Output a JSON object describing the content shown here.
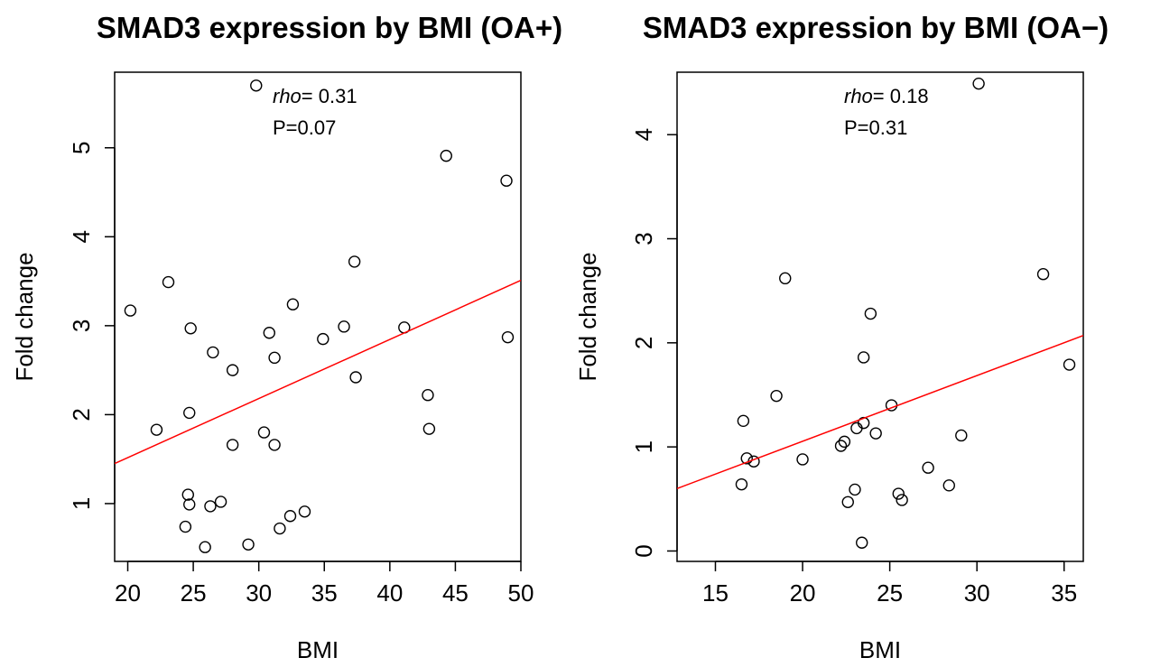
{
  "chart_data": [
    {
      "type": "scatter",
      "title": "SMAD3 expression by BMI (OA+)",
      "xlabel": "BMI",
      "ylabel": "Fold change",
      "xlim": [
        19,
        50
      ],
      "ylim": [
        0.35,
        5.85
      ],
      "xticks": [
        20,
        25,
        30,
        35,
        40,
        45,
        50
      ],
      "yticks": [
        1,
        2,
        3,
        4,
        5
      ],
      "annotation": {
        "rho_label": "rho",
        "rho_value": "= 0.31",
        "p_text": "P=0.07"
      },
      "regression_line": {
        "color": "#ff0000",
        "x": [
          19,
          50
        ],
        "y": [
          1.45,
          3.51
        ]
      },
      "points": [
        {
          "x": 20.2,
          "y": 3.17
        },
        {
          "x": 22.2,
          "y": 1.83
        },
        {
          "x": 23.1,
          "y": 3.49
        },
        {
          "x": 24.4,
          "y": 0.74
        },
        {
          "x": 24.6,
          "y": 1.1
        },
        {
          "x": 24.7,
          "y": 0.99
        },
        {
          "x": 24.7,
          "y": 2.02
        },
        {
          "x": 24.8,
          "y": 2.97
        },
        {
          "x": 25.9,
          "y": 0.51
        },
        {
          "x": 26.3,
          "y": 0.97
        },
        {
          "x": 26.5,
          "y": 2.7
        },
        {
          "x": 27.1,
          "y": 1.02
        },
        {
          "x": 28.0,
          "y": 2.5
        },
        {
          "x": 28.0,
          "y": 1.66
        },
        {
          "x": 29.2,
          "y": 0.54
        },
        {
          "x": 29.8,
          "y": 5.7
        },
        {
          "x": 30.4,
          "y": 1.8
        },
        {
          "x": 30.8,
          "y": 2.92
        },
        {
          "x": 31.2,
          "y": 2.64
        },
        {
          "x": 31.2,
          "y": 1.66
        },
        {
          "x": 31.6,
          "y": 0.72
        },
        {
          "x": 32.4,
          "y": 0.86
        },
        {
          "x": 32.6,
          "y": 3.24
        },
        {
          "x": 33.5,
          "y": 0.91
        },
        {
          "x": 34.9,
          "y": 2.85
        },
        {
          "x": 36.5,
          "y": 2.99
        },
        {
          "x": 37.3,
          "y": 3.72
        },
        {
          "x": 37.4,
          "y": 2.42
        },
        {
          "x": 41.1,
          "y": 2.98
        },
        {
          "x": 42.9,
          "y": 2.22
        },
        {
          "x": 43.0,
          "y": 1.84
        },
        {
          "x": 44.3,
          "y": 4.91
        },
        {
          "x": 48.9,
          "y": 4.63
        },
        {
          "x": 49.0,
          "y": 2.87
        }
      ]
    },
    {
      "type": "scatter",
      "title": "SMAD3 expression by BMI (OA−)",
      "xlabel": "BMI",
      "ylabel": "Fold change",
      "xlim": [
        12.8,
        36.1
      ],
      "ylim": [
        -0.1,
        4.6
      ],
      "xticks": [
        15,
        20,
        25,
        30,
        35
      ],
      "yticks": [
        0,
        1,
        2,
        3,
        4
      ],
      "annotation": {
        "rho_label": "rho",
        "rho_value": "= 0.18",
        "p_text": "P=0.31"
      },
      "regression_line": {
        "color": "#ff0000",
        "x": [
          12.8,
          36.1
        ],
        "y": [
          0.6,
          2.07
        ]
      },
      "points": [
        {
          "x": 16.5,
          "y": 0.64
        },
        {
          "x": 16.6,
          "y": 1.25
        },
        {
          "x": 16.8,
          "y": 0.89
        },
        {
          "x": 17.2,
          "y": 0.86
        },
        {
          "x": 18.5,
          "y": 1.49
        },
        {
          "x": 19.0,
          "y": 2.62
        },
        {
          "x": 20.0,
          "y": 0.88
        },
        {
          "x": 22.2,
          "y": 1.01
        },
        {
          "x": 22.4,
          "y": 1.05
        },
        {
          "x": 22.6,
          "y": 0.47
        },
        {
          "x": 23.0,
          "y": 0.59
        },
        {
          "x": 23.1,
          "y": 1.18
        },
        {
          "x": 23.4,
          "y": 0.08
        },
        {
          "x": 23.5,
          "y": 1.86
        },
        {
          "x": 23.5,
          "y": 1.23
        },
        {
          "x": 23.9,
          "y": 2.28
        },
        {
          "x": 24.2,
          "y": 1.13
        },
        {
          "x": 25.1,
          "y": 1.4
        },
        {
          "x": 25.5,
          "y": 0.55
        },
        {
          "x": 25.7,
          "y": 0.49
        },
        {
          "x": 27.2,
          "y": 0.8
        },
        {
          "x": 28.4,
          "y": 0.63
        },
        {
          "x": 29.1,
          "y": 1.11
        },
        {
          "x": 30.1,
          "y": 4.49
        },
        {
          "x": 33.8,
          "y": 2.66
        },
        {
          "x": 35.3,
          "y": 1.79
        }
      ]
    }
  ]
}
